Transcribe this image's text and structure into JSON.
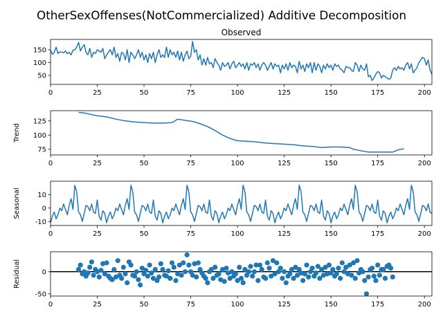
{
  "figure": {
    "title": "OtherSexOffenses(NotCommercialized) Additive Decomposition"
  },
  "chart_data": [
    {
      "type": "line",
      "panel": "observed",
      "title": "Observed",
      "ylabel": "",
      "xlim": [
        0,
        204
      ],
      "ylim": [
        15,
        190
      ],
      "x_ticks": [
        0,
        25,
        50,
        75,
        100,
        125,
        150,
        175,
        200
      ],
      "y_ticks": [
        50,
        100,
        150
      ],
      "color": "#1f77b4",
      "x_start": 0,
      "values": [
        148,
        132,
        140,
        160,
        135,
        142,
        140,
        138,
        145,
        135,
        140,
        130,
        148,
        150,
        160,
        178,
        145,
        160,
        170,
        140,
        130,
        155,
        120,
        140,
        135,
        150,
        145,
        140,
        155,
        115,
        130,
        140,
        150,
        130,
        160,
        120,
        135,
        105,
        140,
        135,
        110,
        150,
        100,
        140,
        130,
        115,
        130,
        150,
        120,
        140,
        110,
        130,
        100,
        135,
        115,
        140,
        100,
        130,
        150,
        120,
        130,
        120,
        160,
        120,
        150,
        130,
        140,
        120,
        145,
        110,
        140,
        105,
        130,
        145,
        115,
        125,
        182,
        140,
        150,
        110,
        130,
        90,
        115,
        90,
        120,
        95,
        100,
        80,
        115,
        100,
        90,
        70,
        100,
        85,
        90,
        100,
        75,
        95,
        105,
        80,
        90,
        100,
        85,
        95,
        75,
        100,
        70,
        95,
        90,
        100,
        80,
        95,
        70,
        90,
        100,
        90,
        70,
        85,
        100,
        75,
        95,
        85,
        90,
        60,
        90,
        75,
        95,
        70,
        100,
        80,
        90,
        85,
        60,
        105,
        75,
        90,
        65,
        95,
        80,
        100,
        60,
        100,
        70,
        95,
        85,
        60,
        90,
        75,
        95,
        80,
        90,
        70,
        95,
        85,
        90,
        75,
        70,
        60,
        85,
        80,
        80,
        70,
        65,
        100,
        90,
        65,
        90,
        75,
        70,
        95,
        45,
        50,
        30,
        40,
        55,
        65,
        60,
        40,
        50,
        45,
        40,
        35,
        40,
        70,
        80,
        70,
        85,
        75,
        80,
        70,
        90,
        100,
        75,
        95,
        60,
        70,
        80,
        100,
        110,
        120,
        115,
        90,
        110,
        70,
        55,
        20
      ]
    },
    {
      "type": "line",
      "panel": "trend",
      "ylabel": "Trend",
      "xlim": [
        0,
        204
      ],
      "ylim": [
        65,
        143
      ],
      "x_ticks": [
        0,
        25,
        50,
        75,
        100,
        125,
        150,
        175,
        200
      ],
      "y_ticks": [
        75,
        100,
        125
      ],
      "color": "#1f77b4",
      "points": [
        [
          15,
          140
        ],
        [
          18,
          139
        ],
        [
          22,
          136
        ],
        [
          25,
          134
        ],
        [
          30,
          132
        ],
        [
          35,
          128
        ],
        [
          40,
          125
        ],
        [
          45,
          123
        ],
        [
          50,
          122
        ],
        [
          55,
          121
        ],
        [
          60,
          121
        ],
        [
          65,
          122
        ],
        [
          68,
          128
        ],
        [
          72,
          126
        ],
        [
          76,
          124
        ],
        [
          80,
          120
        ],
        [
          84,
          115
        ],
        [
          88,
          108
        ],
        [
          92,
          100
        ],
        [
          96,
          94
        ],
        [
          100,
          90
        ],
        [
          105,
          89
        ],
        [
          110,
          88
        ],
        [
          115,
          86
        ],
        [
          120,
          85
        ],
        [
          125,
          84
        ],
        [
          130,
          83
        ],
        [
          135,
          81
        ],
        [
          140,
          80
        ],
        [
          145,
          78
        ],
        [
          150,
          79
        ],
        [
          155,
          79
        ],
        [
          160,
          78
        ],
        [
          162,
          75
        ],
        [
          165,
          73
        ],
        [
          170,
          70
        ],
        [
          175,
          70
        ],
        [
          180,
          70
        ],
        [
          183,
          70
        ],
        [
          186,
          74
        ],
        [
          189,
          76
        ]
      ]
    },
    {
      "type": "line",
      "panel": "seasonal",
      "ylabel": "Seasonal",
      "xlim": [
        0,
        204
      ],
      "ylim": [
        -13,
        20
      ],
      "x_ticks": [
        0,
        25,
        50,
        75,
        100,
        125,
        150,
        175,
        200
      ],
      "y_ticks": [
        -10,
        0,
        10
      ],
      "color": "#1f77b4",
      "period": 30,
      "pattern": [
        -11,
        -6,
        -3,
        -8,
        -5,
        0,
        -2,
        3,
        -1,
        -5,
        2,
        7,
        -1,
        17,
        12,
        -3,
        -5,
        -10,
        -4,
        2,
        1,
        -2,
        3,
        -3,
        -4,
        6,
        -6,
        -9,
        -2,
        -4
      ],
      "n_points": 205
    },
    {
      "type": "scatter",
      "panel": "residual",
      "ylabel": "Residual",
      "xlim": [
        0,
        204
      ],
      "ylim": [
        -55,
        45
      ],
      "x_ticks": [
        0,
        25,
        50,
        75,
        100,
        125,
        150,
        175,
        200
      ],
      "y_ticks": [
        -50,
        0
      ],
      "zero_line": true,
      "color": "#1f77b4",
      "x_start": 15,
      "values": [
        5,
        15,
        -5,
        0,
        -10,
        -3,
        10,
        22,
        -8,
        5,
        0,
        -12,
        3,
        18,
        -5,
        20,
        -10,
        -15,
        -18,
        5,
        -12,
        25,
        -8,
        -15,
        10,
        -5,
        -25,
        22,
        15,
        -8,
        -10,
        0,
        -18,
        -30,
        8,
        -5,
        3,
        -10,
        15,
        -3,
        -15,
        5,
        -20,
        -12,
        18,
        5,
        -8,
        -10,
        2,
        -15,
        20,
        10,
        -20,
        -5,
        15,
        -8,
        20,
        0,
        38,
        15,
        0,
        -8,
        18,
        -12,
        20,
        5,
        -3,
        -10,
        -15,
        -25,
        0,
        5,
        -15,
        10,
        -8,
        -5,
        -18,
        5,
        -22,
        8,
        -3,
        -15,
        0,
        -10,
        -5,
        -20,
        10,
        -15,
        -25,
        5,
        -8,
        0,
        12,
        -10,
        0,
        15,
        -20,
        15,
        5,
        -12,
        -15,
        20,
        8,
        -10,
        25,
        -5,
        20,
        0,
        8,
        -15,
        0,
        -25,
        -10,
        -5,
        5,
        -15,
        10,
        -8,
        5,
        -3,
        -20,
        -5,
        15,
        -12,
        0,
        8,
        -10,
        -3,
        12,
        -15,
        5,
        -8,
        10,
        -5,
        15,
        -3,
        5,
        -10,
        -5,
        8,
        -15,
        20,
        0,
        10,
        -5,
        15,
        -8,
        20,
        -15,
        25,
        -3,
        5,
        0,
        -20,
        -50,
        -12,
        5,
        8,
        -10,
        -20,
        15,
        -8,
        5,
        5,
        -15,
        12,
        15,
        8,
        -12
      ]
    }
  ]
}
